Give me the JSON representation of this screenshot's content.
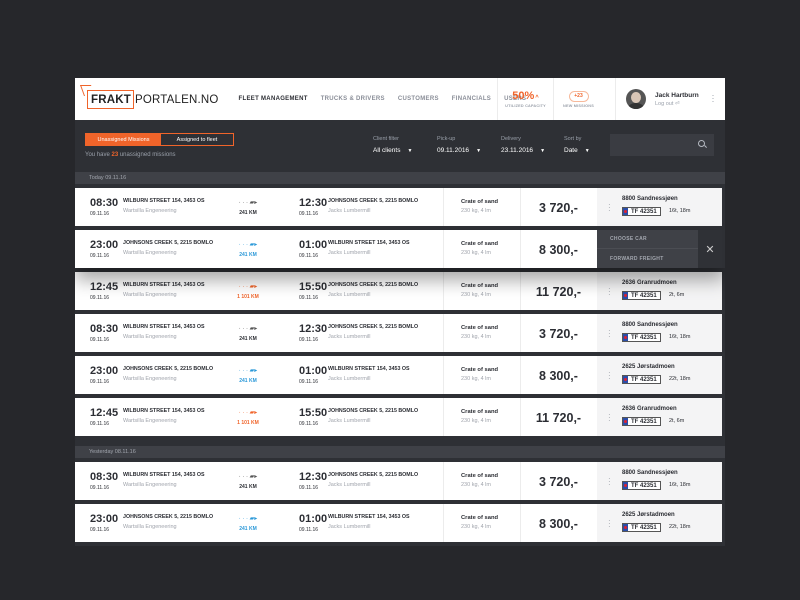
{
  "brand": {
    "box": "FRAKT",
    "rest": "PORTALEN.NO"
  },
  "nav": [
    "FLEET MANAGEMENT",
    "TRUCKS & DRIVERS",
    "CUSTOMERS",
    "FINANCIALS",
    "USERS"
  ],
  "capacity": {
    "value": "50%",
    "arrow": "^",
    "label": "UTILIZED CAPACITY"
  },
  "newmissions": {
    "badge": "+23",
    "label": "NEW MISSIONS"
  },
  "user": {
    "name": "Jack Hartburn",
    "logout": "Log out ⏎"
  },
  "tabs": {
    "unassigned": "Unassigned Missions",
    "assigned": "Assigned to fleet"
  },
  "unassigned_prefix": "You have ",
  "unassigned_count": "23",
  "unassigned_suffix": " unassigned missions",
  "filters": [
    {
      "title": "Client filter",
      "value": "All clients"
    },
    {
      "title": "Pick-up",
      "value": "09.11.2016"
    },
    {
      "title": "Delivery",
      "value": "23.11.2016"
    },
    {
      "title": "Sort by",
      "value": "Date"
    }
  ],
  "groups": [
    {
      "header": "Today 09.11.16",
      "rows": [
        {
          "t1": "08:30",
          "d1": "09.11.16",
          "a1": "WILBURN STREET 154, 3453 OS",
          "s1": "Wartsilla Engeneering",
          "km": "241 KM",
          "kc": "dark",
          "t2": "12:30",
          "d2": "09.11.16",
          "a2": "JOHNSONS CREEK 5, 2215 BOMLO",
          "s2": "Jacks Lumbermill",
          "cargo": "Crate of sand",
          "spec": "230 kg, 4 lm",
          "price": "3 720,-",
          "fleet": "8800 Sandnessjøen",
          "plate": "TF 42351",
          "dim": "16t, 18m"
        },
        {
          "t1": "23:00",
          "d1": "09.11.16",
          "a1": "JOHNSONS CREEK 5, 2215 BOMLO",
          "s1": "Wartsilla Engeneering",
          "km": "241 KM",
          "kc": "blue",
          "t2": "01:00",
          "d2": "09.11.16",
          "a2": "WILBURN STREET 154, 3453 OS",
          "s2": "Jacks Lumbermill",
          "cargo": "Crate of sand",
          "spec": "230 kg, 4 lm",
          "price": "8 300,-",
          "menu": [
            "CHOOSE CAR",
            "FORWARD FREIGHT"
          ]
        },
        {
          "t1": "12:45",
          "d1": "09.11.16",
          "a1": "WILBURN STREET 154, 3453 OS",
          "s1": "Wartsilla Engeneering",
          "km": "1 101 KM",
          "kc": "org",
          "t2": "15:50",
          "d2": "09.11.16",
          "a2": "JOHNSONS CREEK 5, 2215 BOMLO",
          "s2": "Jacks Lumbermill",
          "cargo": "Crate of sand",
          "spec": "230 kg, 4 lm",
          "price": "11 720,-",
          "fleet": "2636 Granrudmoen",
          "plate": "TF 42351",
          "dim": "2t, 6m"
        },
        {
          "t1": "08:30",
          "d1": "09.11.16",
          "a1": "WILBURN STREET 154, 3453 OS",
          "s1": "Wartsilla Engeneering",
          "km": "241 KM",
          "kc": "dark",
          "t2": "12:30",
          "d2": "09.11.16",
          "a2": "JOHNSONS CREEK 5, 2215 BOMLO",
          "s2": "Jacks Lumbermill",
          "cargo": "Crate of sand",
          "spec": "230 kg, 4 lm",
          "price": "3 720,-",
          "fleet": "8800 Sandnessjøen",
          "plate": "TF 42351",
          "dim": "16t, 18m"
        },
        {
          "t1": "23:00",
          "d1": "09.11.16",
          "a1": "JOHNSONS CREEK 5, 2215 BOMLO",
          "s1": "Wartsilla Engeneering",
          "km": "241 KM",
          "kc": "blue",
          "t2": "01:00",
          "d2": "09.11.16",
          "a2": "WILBURN STREET 154, 3453 OS",
          "s2": "Jacks Lumbermill",
          "cargo": "Crate of sand",
          "spec": "230 kg, 4 lm",
          "price": "8 300,-",
          "fleet": "2625 Jørstadmoen",
          "plate": "TF 42351",
          "dim": "22t, 18m"
        },
        {
          "t1": "12:45",
          "d1": "09.11.16",
          "a1": "WILBURN STREET 154, 3453 OS",
          "s1": "Wartsilla Engeneering",
          "km": "1 101 KM",
          "kc": "org",
          "t2": "15:50",
          "d2": "09.11.16",
          "a2": "JOHNSONS CREEK 5, 2215 BOMLO",
          "s2": "Jacks Lumbermill",
          "cargo": "Crate of sand",
          "spec": "230 kg, 4 lm",
          "price": "11 720,-",
          "fleet": "2636 Granrudmoen",
          "plate": "TF 42351",
          "dim": "2t, 6m"
        }
      ]
    },
    {
      "header": "Yesterday 08.11.16",
      "rows": [
        {
          "t1": "08:30",
          "d1": "09.11.16",
          "a1": "WILBURN STREET 154, 3453 OS",
          "s1": "Wartsilla Engeneering",
          "km": "241 KM",
          "kc": "dark",
          "t2": "12:30",
          "d2": "09.11.16",
          "a2": "JOHNSONS CREEK 5, 2215 BOMLO",
          "s2": "Jacks Lumbermill",
          "cargo": "Crate of sand",
          "spec": "230 kg, 4 lm",
          "price": "3 720,-",
          "fleet": "8800 Sandnessjøen",
          "plate": "TF 42351",
          "dim": "16t, 18m"
        },
        {
          "t1": "23:00",
          "d1": "09.11.16",
          "a1": "JOHNSONS CREEK 5, 2215 BOMLO",
          "s1": "Wartsilla Engeneering",
          "km": "241 KM",
          "kc": "blue",
          "t2": "01:00",
          "d2": "09.11.16",
          "a2": "WILBURN STREET 154, 3453 OS",
          "s2": "Jacks Lumbermill",
          "cargo": "Crate of sand",
          "spec": "230 kg, 4 lm",
          "price": "8 300,-",
          "fleet": "2625 Jørstadmoen",
          "plate": "TF 42351",
          "dim": "22t, 18m"
        }
      ]
    }
  ],
  "colors": {
    "accent": "#f0642a",
    "blue": "#2a98d8",
    "bg": "#26272b",
    "panel": "#2e3035"
  }
}
